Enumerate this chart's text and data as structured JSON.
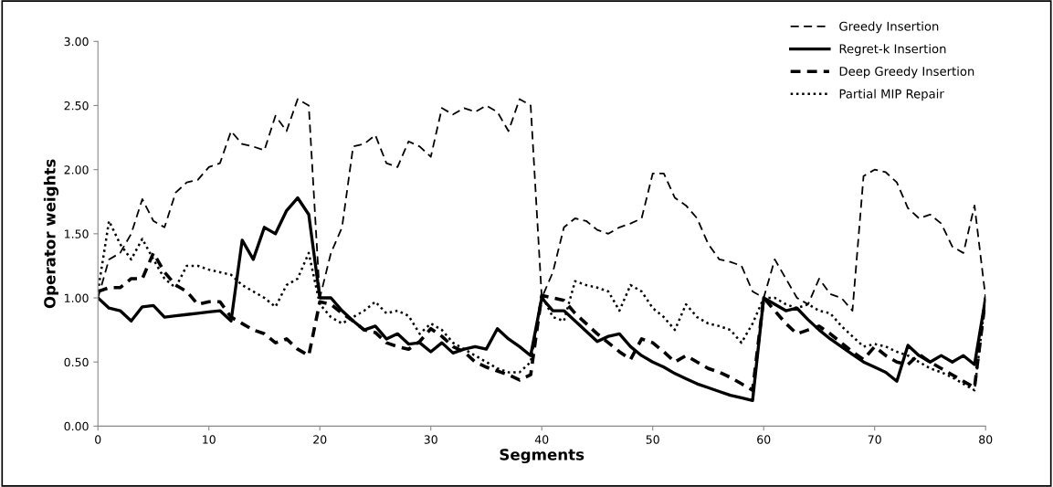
{
  "chart_data": {
    "type": "line",
    "xlabel": "Segments",
    "ylabel": "Operator weights",
    "x": [
      0,
      1,
      2,
      3,
      4,
      5,
      6,
      7,
      8,
      9,
      10,
      11,
      12,
      13,
      14,
      15,
      16,
      17,
      18,
      19,
      20,
      21,
      22,
      23,
      24,
      25,
      26,
      27,
      28,
      29,
      30,
      31,
      32,
      33,
      34,
      35,
      36,
      37,
      38,
      39,
      40,
      41,
      42,
      43,
      44,
      45,
      46,
      47,
      48,
      49,
      50,
      51,
      52,
      53,
      54,
      55,
      56,
      57,
      58,
      59,
      60,
      61,
      62,
      63,
      64,
      65,
      66,
      67,
      68,
      69,
      70,
      71,
      72,
      73,
      74,
      75,
      76,
      77,
      78,
      79,
      80
    ],
    "series": [
      {
        "name": "Greedy Insertion",
        "color": "#000000",
        "line_style": "dashed",
        "values": [
          1.0,
          1.3,
          1.35,
          1.5,
          1.77,
          1.6,
          1.55,
          1.82,
          1.9,
          1.92,
          2.02,
          2.05,
          2.3,
          2.2,
          2.18,
          2.15,
          2.42,
          2.3,
          2.55,
          2.5,
          1.0,
          1.35,
          1.55,
          2.18,
          2.2,
          2.27,
          2.05,
          2.02,
          2.22,
          2.18,
          2.1,
          2.48,
          2.43,
          2.48,
          2.45,
          2.5,
          2.45,
          2.3,
          2.55,
          2.5,
          1.0,
          1.2,
          1.55,
          1.62,
          1.6,
          1.53,
          1.5,
          1.55,
          1.58,
          1.62,
          1.97,
          1.97,
          1.78,
          1.72,
          1.62,
          1.42,
          1.3,
          1.28,
          1.25,
          1.05,
          1.0,
          1.3,
          1.15,
          1.0,
          0.95,
          1.15,
          1.03,
          1.0,
          0.9,
          1.95,
          2.0,
          1.98,
          1.9,
          1.7,
          1.62,
          1.65,
          1.58,
          1.4,
          1.35,
          1.72,
          1.0
        ]
      },
      {
        "name": "Regret-k Insertion",
        "color": "#000000",
        "line_style": "solid",
        "values": [
          1.0,
          0.92,
          0.9,
          0.82,
          0.93,
          0.94,
          0.85,
          0.86,
          0.87,
          0.88,
          0.89,
          0.9,
          0.82,
          1.45,
          1.3,
          1.55,
          1.5,
          1.68,
          1.78,
          1.65,
          1.0,
          1.0,
          0.9,
          0.82,
          0.75,
          0.78,
          0.68,
          0.72,
          0.64,
          0.65,
          0.58,
          0.65,
          0.57,
          0.6,
          0.62,
          0.6,
          0.76,
          0.68,
          0.62,
          0.55,
          1.0,
          0.9,
          0.9,
          0.82,
          0.74,
          0.66,
          0.7,
          0.72,
          0.62,
          0.55,
          0.5,
          0.46,
          0.41,
          0.37,
          0.33,
          0.3,
          0.27,
          0.24,
          0.22,
          0.2,
          1.0,
          0.95,
          0.9,
          0.92,
          0.83,
          0.75,
          0.68,
          0.62,
          0.56,
          0.5,
          0.46,
          0.42,
          0.35,
          0.63,
          0.55,
          0.5,
          0.55,
          0.5,
          0.55,
          0.48,
          1.0
        ]
      },
      {
        "name": "Deep Greedy Insertion",
        "color": "#000000",
        "line_style": "dashed",
        "values": [
          1.05,
          1.08,
          1.08,
          1.15,
          1.15,
          1.35,
          1.2,
          1.1,
          1.05,
          0.95,
          0.97,
          0.97,
          0.85,
          0.8,
          0.75,
          0.72,
          0.65,
          0.68,
          0.6,
          0.55,
          0.97,
          0.95,
          0.88,
          0.82,
          0.75,
          0.73,
          0.65,
          0.62,
          0.6,
          0.66,
          0.76,
          0.7,
          0.62,
          0.58,
          0.5,
          0.46,
          0.43,
          0.4,
          0.36,
          0.4,
          1.02,
          1.0,
          0.98,
          0.88,
          0.8,
          0.72,
          0.65,
          0.58,
          0.52,
          0.68,
          0.65,
          0.58,
          0.5,
          0.55,
          0.5,
          0.45,
          0.42,
          0.38,
          0.33,
          0.28,
          1.0,
          0.9,
          0.8,
          0.72,
          0.75,
          0.78,
          0.72,
          0.65,
          0.58,
          0.52,
          0.62,
          0.55,
          0.5,
          0.48,
          0.56,
          0.5,
          0.45,
          0.4,
          0.35,
          0.3,
          1.0
        ]
      },
      {
        "name": "Partial MIP Repair",
        "color": "#000000",
        "line_style": "dotted",
        "values": [
          1.05,
          1.6,
          1.42,
          1.3,
          1.46,
          1.3,
          1.15,
          1.08,
          1.25,
          1.25,
          1.22,
          1.2,
          1.18,
          1.1,
          1.05,
          1.0,
          0.93,
          1.1,
          1.15,
          1.35,
          0.95,
          0.85,
          0.8,
          0.85,
          0.9,
          0.97,
          0.88,
          0.9,
          0.86,
          0.72,
          0.8,
          0.75,
          0.65,
          0.6,
          0.55,
          0.5,
          0.45,
          0.42,
          0.42,
          0.5,
          1.02,
          0.85,
          0.82,
          1.13,
          1.1,
          1.08,
          1.05,
          0.9,
          1.1,
          1.05,
          0.92,
          0.85,
          0.75,
          0.95,
          0.85,
          0.8,
          0.78,
          0.75,
          0.65,
          0.8,
          1.0,
          1.0,
          0.95,
          0.92,
          0.95,
          0.9,
          0.88,
          0.78,
          0.7,
          0.62,
          0.64,
          0.62,
          0.58,
          0.55,
          0.5,
          0.45,
          0.42,
          0.38,
          0.33,
          0.28,
          1.0
        ]
      }
    ],
    "xlim": [
      0,
      80
    ],
    "xticks": [
      0,
      10,
      20,
      30,
      40,
      50,
      60,
      70,
      80
    ],
    "ylim": [
      0,
      3
    ],
    "yticks": [
      {
        "value": 0,
        "label": "0.00"
      },
      {
        "value": 0.5,
        "label": "0.50"
      },
      {
        "value": 1,
        "label": "1.00"
      },
      {
        "value": 1.5,
        "label": "1.50"
      },
      {
        "value": 2,
        "label": "2.00"
      },
      {
        "value": 2.5,
        "label": "2.50"
      },
      {
        "value": 3,
        "label": "3.00"
      }
    ],
    "grid": false,
    "legend": "top right"
  }
}
